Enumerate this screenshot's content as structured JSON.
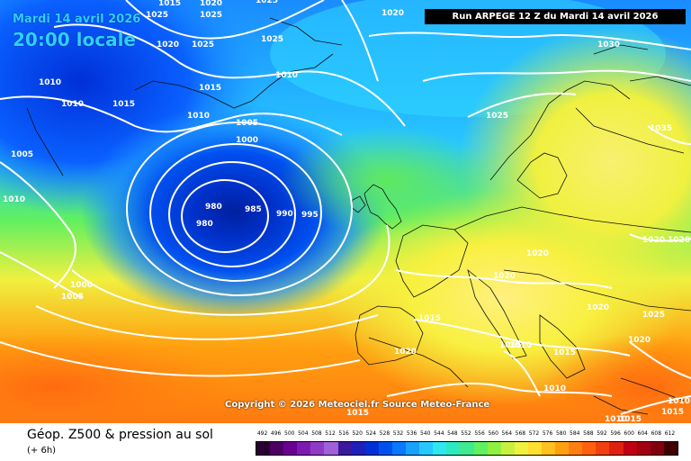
{
  "header": {
    "date_label": "Mardi 14 avril 2026",
    "time_label": "20:00 locale",
    "run_label": "Run ARPEGE 12 Z du Mardi 14 avril 2026",
    "copyright": "Copyright © 2026 Meteociel.fr Source Meteo-France"
  },
  "footer": {
    "title": "Géop. Z500 & pression au sol",
    "subtitle": "(+ 6h)"
  },
  "legend": {
    "ticks": [
      "492",
      "496",
      "500",
      "504",
      "508",
      "512",
      "516",
      "520",
      "524",
      "528",
      "532",
      "536",
      "540",
      "544",
      "548",
      "552",
      "556",
      "560",
      "564",
      "568",
      "572",
      "576",
      "580",
      "584",
      "588",
      "592",
      "596",
      "600",
      "604",
      "608",
      "612"
    ],
    "colors": [
      "#2a0030",
      "#4b0062",
      "#6a0092",
      "#7d1bb0",
      "#8e3bc6",
      "#a060d8",
      "#3a1a9a",
      "#1e20b8",
      "#0030d8",
      "#0050f0",
      "#0a78ff",
      "#1aa0ff",
      "#28c8ff",
      "#30e6f0",
      "#30e8c0",
      "#40e890",
      "#60f060",
      "#90f040",
      "#c8f040",
      "#f0f040",
      "#ffe030",
      "#ffc020",
      "#ffa010",
      "#ff8010",
      "#ff6010",
      "#f04010",
      "#e02010",
      "#c00010",
      "#a00010",
      "#800010",
      "#400000"
    ]
  },
  "isobars": [
    {
      "id": "iso-1015-a",
      "value": "1015"
    },
    {
      "id": "iso-1025-a",
      "value": "1025"
    },
    {
      "id": "iso-1020-a",
      "value": "1020"
    },
    {
      "id": "iso-1025-b",
      "value": "1025"
    },
    {
      "id": "iso-1025-c",
      "value": "1025"
    },
    {
      "id": "iso-1020-b",
      "value": "1020"
    },
    {
      "id": "iso-1020-c",
      "value": "1020"
    },
    {
      "id": "iso-1030",
      "value": "1030"
    },
    {
      "id": "iso-1010-a",
      "value": "1010"
    },
    {
      "id": "iso-1010-b",
      "value": "1010"
    },
    {
      "id": "iso-1015-b",
      "value": "1015"
    },
    {
      "id": "iso-1015-c",
      "value": "1015"
    },
    {
      "id": "iso-1010-c",
      "value": "1010"
    },
    {
      "id": "iso-1010-d",
      "value": "1010"
    },
    {
      "id": "iso-1005-a",
      "value": "1005"
    },
    {
      "id": "iso-1000-a",
      "value": "1000"
    },
    {
      "id": "iso-1025-d",
      "value": "1025"
    },
    {
      "id": "iso-1035",
      "value": "1035"
    },
    {
      "id": "iso-1005-b",
      "value": "1005"
    },
    {
      "id": "iso-1010-e",
      "value": "1010"
    },
    {
      "id": "iso-980-a",
      "value": "980"
    },
    {
      "id": "iso-980-b",
      "value": "980"
    },
    {
      "id": "iso-985",
      "value": "985"
    },
    {
      "id": "iso-990",
      "value": "990"
    },
    {
      "id": "iso-995",
      "value": "995"
    },
    {
      "id": "iso-1020-d",
      "value": "1020"
    },
    {
      "id": "iso-1020-e",
      "value": "1020"
    },
    {
      "id": "iso-1025-e",
      "value": "1025"
    },
    {
      "id": "iso-1000-b",
      "value": "1000"
    },
    {
      "id": "iso-1005-c",
      "value": "1005"
    },
    {
      "id": "iso-1020-f",
      "value": "1020"
    },
    {
      "id": "iso-1015-d",
      "value": "1015"
    },
    {
      "id": "iso-1020-g",
      "value": "1020"
    },
    {
      "id": "iso-1020-h",
      "value": "1020"
    },
    {
      "id": "iso-1025-f",
      "value": "1025"
    },
    {
      "id": "iso-1020-i",
      "value": "1020"
    },
    {
      "id": "iso-1015-e",
      "value": "1015"
    },
    {
      "id": "iso-1025-g",
      "value": "1025"
    },
    {
      "id": "iso-1010-f",
      "value": "1010"
    },
    {
      "id": "iso-1015-f",
      "value": "1015"
    },
    {
      "id": "iso-1020-j",
      "value": "1020"
    },
    {
      "id": "iso-1010-g",
      "value": "1010"
    },
    {
      "id": "iso-1010-h",
      "value": "1010"
    },
    {
      "id": "iso-1015-g",
      "value": "1015"
    },
    {
      "id": "iso-1015-h",
      "value": "1015"
    },
    {
      "id": "iso-1010-i",
      "value": "1010"
    },
    {
      "id": "iso-1015-i",
      "value": "1015"
    }
  ]
}
